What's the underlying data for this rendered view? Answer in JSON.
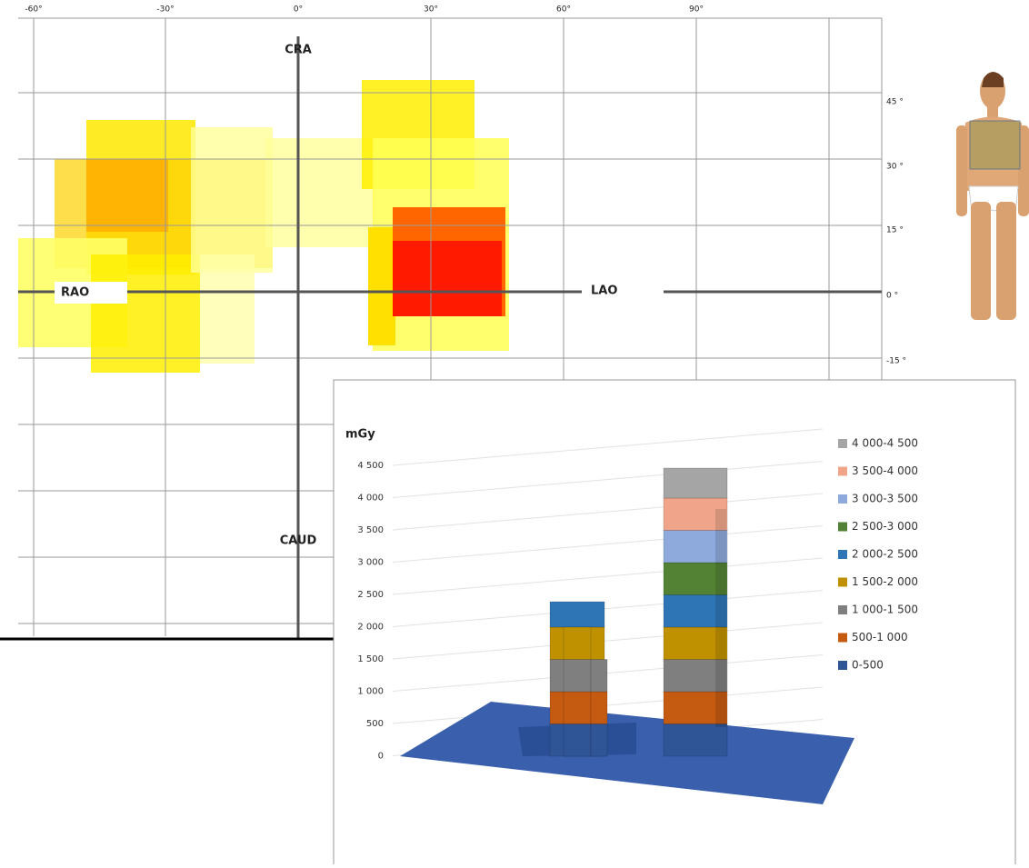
{
  "top_axis": {
    "ticks": [
      "-60°",
      "-30°",
      "0°",
      "30°",
      "60°",
      "90°"
    ]
  },
  "right_axis": {
    "ticks": [
      "45 °",
      "30 °",
      "15 °",
      "0 °",
      "-15 °"
    ]
  },
  "directions": {
    "cra": "CRA",
    "caud": "CAUD",
    "rao": "RAO",
    "lao": "LAO"
  },
  "inset": {
    "y_label": "mGy",
    "yticks": [
      "4 500",
      "4 000",
      "3 500",
      "3 000",
      "2 500",
      "2 000",
      "1 500",
      "1 000",
      "500",
      "0"
    ],
    "legend": [
      {
        "label": "4 000-4 500",
        "color": "#a5a5a5"
      },
      {
        "label": "3 500-4 000",
        "color": "#f0a58a"
      },
      {
        "label": "3 000-3 500",
        "color": "#8ea9db"
      },
      {
        "label": "2 500-3 000",
        "color": "#548235"
      },
      {
        "label": "2 000-2 500",
        "color": "#2e75b6"
      },
      {
        "label": "1 500-2 000",
        "color": "#bf9000"
      },
      {
        "label": "1 000-1 500",
        "color": "#7f7f7f"
      },
      {
        "label": "500-1 000",
        "color": "#c55a11"
      },
      {
        "label": "0-500",
        "color": "#2f5597"
      }
    ]
  }
}
